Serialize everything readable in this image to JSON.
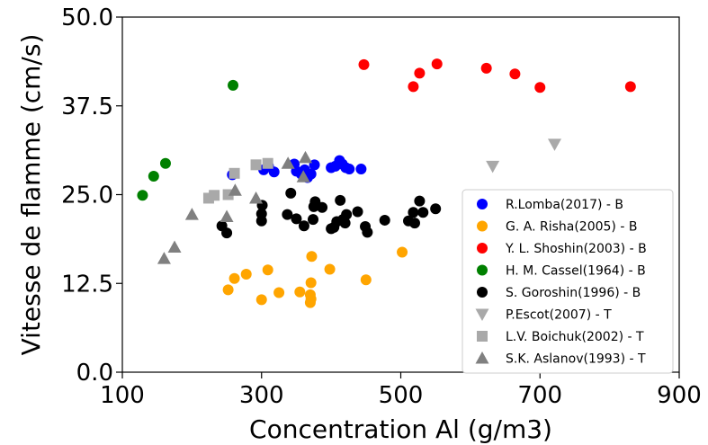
{
  "chart_data": {
    "type": "scatter",
    "title": "",
    "xlabel": "Concentration Al (g/m3)",
    "ylabel": "Vitesse de flamme (cm/s)",
    "xlim": [
      100,
      900
    ],
    "ylim": [
      0,
      50
    ],
    "xticks": [
      100,
      300,
      500,
      700,
      900
    ],
    "yticks": [
      0,
      12.5,
      25,
      37.5,
      50
    ],
    "xtick_labels": [
      "100",
      "300",
      "500",
      "700",
      "900"
    ],
    "ytick_labels": [
      "0.0",
      "12.5",
      "25.0",
      "37.5",
      "50.0"
    ],
    "grid": false,
    "legend_position": "lower-right",
    "series": [
      {
        "name": "R.Lomba(2017) - B",
        "color": "#0000ff",
        "marker": "circle",
        "points": [
          [
            258,
            27.8
          ],
          [
            303,
            28.5
          ],
          [
            310,
            29.0
          ],
          [
            318,
            28.2
          ],
          [
            347,
            29.3
          ],
          [
            350,
            28.3
          ],
          [
            357,
            27.9
          ],
          [
            362,
            28.5
          ],
          [
            366,
            27.4
          ],
          [
            371,
            27.9
          ],
          [
            376,
            29.2
          ],
          [
            400,
            28.8
          ],
          [
            406,
            29.0
          ],
          [
            412,
            29.8
          ],
          [
            416,
            29.3
          ],
          [
            421,
            28.8
          ],
          [
            426,
            28.6
          ],
          [
            443,
            28.6
          ]
        ]
      },
      {
        "name": "G. A. Risha(2005) - B",
        "color": "#ffa500",
        "marker": "circle",
        "points": [
          [
            252,
            11.6
          ],
          [
            261,
            13.2
          ],
          [
            278,
            13.8
          ],
          [
            300,
            10.2
          ],
          [
            309,
            14.4
          ],
          [
            325,
            11.2
          ],
          [
            355,
            11.3
          ],
          [
            370,
            10.9
          ],
          [
            370,
            9.8
          ],
          [
            371,
            12.6
          ],
          [
            371,
            10.3
          ],
          [
            372,
            16.3
          ],
          [
            398,
            14.5
          ],
          [
            450,
            13.0
          ],
          [
            502,
            16.9
          ]
        ]
      },
      {
        "name": "Y. L. Shoshin(2003) - B",
        "color": "#ff0000",
        "marker": "circle",
        "points": [
          [
            447,
            43.3
          ],
          [
            518,
            40.2
          ],
          [
            527,
            42.1
          ],
          [
            552,
            43.4
          ],
          [
            623,
            42.8
          ],
          [
            664,
            42.0
          ],
          [
            700,
            40.1
          ],
          [
            830,
            40.2
          ]
        ]
      },
      {
        "name": "H. M. Cassel(1964) - B",
        "color": "#008000",
        "marker": "circle",
        "points": [
          [
            129,
            24.9
          ],
          [
            145,
            27.6
          ],
          [
            162,
            29.4
          ],
          [
            259,
            40.4
          ]
        ]
      },
      {
        "name": "S. Goroshin(1996) - B",
        "color": "#000000",
        "marker": "circle",
        "points": [
          [
            243,
            20.6
          ],
          [
            250,
            19.6
          ],
          [
            300,
            21.3
          ],
          [
            300,
            22.3
          ],
          [
            301,
            23.5
          ],
          [
            337,
            22.2
          ],
          [
            342,
            25.2
          ],
          [
            350,
            21.6
          ],
          [
            361,
            20.6
          ],
          [
            374,
            21.5
          ],
          [
            375,
            23.3
          ],
          [
            377,
            24.0
          ],
          [
            387,
            23.2
          ],
          [
            400,
            20.2
          ],
          [
            404,
            20.4
          ],
          [
            408,
            21.2
          ],
          [
            413,
            24.2
          ],
          [
            417,
            21.5
          ],
          [
            420,
            21.0
          ],
          [
            422,
            22.2
          ],
          [
            438,
            22.6
          ],
          [
            449,
            20.5
          ],
          [
            452,
            19.7
          ],
          [
            477,
            21.4
          ],
          [
            511,
            21.3
          ],
          [
            518,
            22.5
          ],
          [
            520,
            21.0
          ],
          [
            527,
            24.1
          ],
          [
            532,
            22.5
          ],
          [
            550,
            23.0
          ]
        ]
      },
      {
        "name": "P.Escot(2007) - T",
        "color": "#a9a9a9",
        "marker": "triangle-down",
        "points": [
          [
            632,
            29.0
          ],
          [
            721,
            32.1
          ]
        ]
      },
      {
        "name": "L.V. Boichuk(2002) - T",
        "color": "#a9a9a9",
        "marker": "square",
        "points": [
          [
            224,
            24.5
          ],
          [
            232,
            24.9
          ],
          [
            252,
            25.0
          ],
          [
            261,
            28.0
          ],
          [
            292,
            29.2
          ],
          [
            309,
            29.4
          ]
        ]
      },
      {
        "name": "S.K. Aslanov(1993) - T",
        "color": "#808080",
        "marker": "triangle-up",
        "points": [
          [
            160,
            16.0
          ],
          [
            175,
            17.6
          ],
          [
            200,
            22.2
          ],
          [
            250,
            21.9
          ],
          [
            262,
            25.6
          ],
          [
            292,
            24.5
          ],
          [
            338,
            29.4
          ],
          [
            360,
            27.5
          ],
          [
            363,
            30.2
          ]
        ]
      }
    ]
  }
}
